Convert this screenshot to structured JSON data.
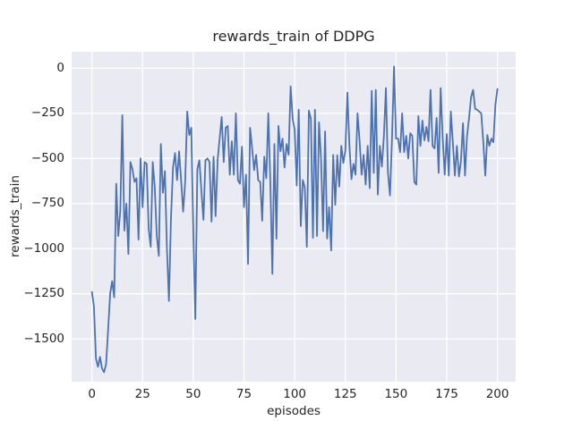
{
  "figure": {
    "background": "#ffffff"
  },
  "chart_data": {
    "type": "line",
    "title": "rewards_train of DDPG",
    "xlabel": "episodes",
    "ylabel": "rewards_train",
    "legend": null,
    "grid": true,
    "x_start": 0,
    "x_step": 1,
    "xlim": [
      -10,
      209
    ],
    "ylim": [
      -1740,
      91
    ],
    "xticks": [
      {
        "value": 0,
        "label": "0"
      },
      {
        "value": 25,
        "label": "25"
      },
      {
        "value": 50,
        "label": "50"
      },
      {
        "value": 75,
        "label": "75"
      },
      {
        "value": 100,
        "label": "100"
      },
      {
        "value": 125,
        "label": "125"
      },
      {
        "value": 150,
        "label": "150"
      },
      {
        "value": 175,
        "label": "175"
      },
      {
        "value": 200,
        "label": "200"
      }
    ],
    "yticks": [
      {
        "value": 0,
        "label": "0"
      },
      {
        "value": -250,
        "label": "−250"
      },
      {
        "value": -500,
        "label": "−500"
      },
      {
        "value": -750,
        "label": "−750"
      },
      {
        "value": -1000,
        "label": "−1000"
      },
      {
        "value": -1250,
        "label": "−1250"
      },
      {
        "value": -1500,
        "label": "−1500"
      }
    ],
    "values": [
      -1240,
      -1320,
      -1610,
      -1655,
      -1600,
      -1665,
      -1685,
      -1640,
      -1450,
      -1250,
      -1180,
      -1270,
      -640,
      -930,
      -790,
      -260,
      -900,
      -750,
      -1030,
      -520,
      -560,
      -630,
      -610,
      -950,
      -500,
      -770,
      -520,
      -530,
      -890,
      -990,
      -520,
      -660,
      -930,
      -1040,
      -420,
      -690,
      -570,
      -1000,
      -1290,
      -830,
      -550,
      -470,
      -620,
      -460,
      -620,
      -795,
      -630,
      -240,
      -370,
      -330,
      -900,
      -1390,
      -560,
      -510,
      -680,
      -840,
      -510,
      -500,
      -520,
      -850,
      -490,
      -820,
      -510,
      -390,
      -270,
      -520,
      -330,
      -320,
      -590,
      -405,
      -590,
      -250,
      -620,
      -640,
      -435,
      -770,
      -590,
      -1085,
      -330,
      -440,
      -565,
      -480,
      -620,
      -630,
      -845,
      -490,
      -610,
      -250,
      -630,
      -1140,
      -420,
      -945,
      -320,
      -460,
      -390,
      -550,
      -420,
      -480,
      -100,
      -280,
      -340,
      -650,
      -230,
      -875,
      -620,
      -660,
      -990,
      -235,
      -280,
      -940,
      -230,
      -930,
      -300,
      -500,
      -903,
      -350,
      -944,
      -770,
      -1010,
      -480,
      -757,
      -482,
      -656,
      -430,
      -525,
      -455,
      -135,
      -430,
      -615,
      -530,
      -590,
      -250,
      -400,
      -590,
      -480,
      -645,
      -430,
      -665,
      -125,
      -580,
      -120,
      -700,
      -430,
      -545,
      -375,
      -110,
      -580,
      -705,
      -390,
      10,
      -390,
      -390,
      -465,
      -250,
      -465,
      -375,
      -500,
      -360,
      -375,
      -630,
      -645,
      -265,
      -430,
      -290,
      -400,
      -325,
      -405,
      -120,
      -430,
      -445,
      -275,
      -580,
      -110,
      -390,
      -590,
      -365,
      -595,
      -240,
      -410,
      -595,
      -430,
      -600,
      -515,
      -305,
      -595,
      -375,
      -275,
      -160,
      -120,
      -225,
      -230,
      -240,
      -250,
      -405,
      -595,
      -370,
      -430,
      -390,
      -410,
      -200,
      -115
    ],
    "style": {
      "line_color": "#4C72B0",
      "line_width": 1.8,
      "plot_background": "#EAEAF2",
      "grid_color": "#FFFFFF",
      "grid_width": 1.3,
      "text_color": "#262626"
    }
  }
}
